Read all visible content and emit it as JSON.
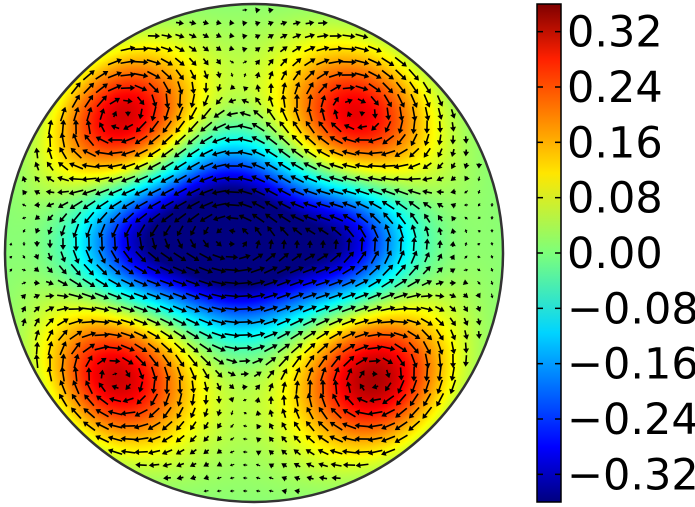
{
  "chart_data": {
    "type": "heatmap",
    "subtype": "vector-field-overlay-on-disk",
    "title": "",
    "xlabel": "",
    "ylabel": "",
    "colormap": "jet",
    "colorbar": {
      "range": [
        -0.36,
        0.36
      ],
      "ticks": [
        0.32,
        0.24,
        0.16,
        0.08,
        0.0,
        -0.08,
        -0.16,
        -0.24,
        -0.32
      ],
      "tick_labels": [
        "0.32",
        "0.24",
        "0.16",
        "0.08",
        "0.00",
        "−0.08",
        "−0.16",
        "−0.24",
        "−0.32"
      ]
    },
    "field_features": [
      {
        "kind": "max",
        "x": -0.55,
        "y": 0.56,
        "value": 0.34
      },
      {
        "kind": "max",
        "x": 0.42,
        "y": 0.56,
        "value": 0.3
      },
      {
        "kind": "max",
        "x": -0.58,
        "y": -0.52,
        "value": 0.33
      },
      {
        "kind": "max",
        "x": 0.5,
        "y": -0.52,
        "value": 0.34
      },
      {
        "kind": "min",
        "x": -0.45,
        "y": 0.05,
        "value": -0.32
      },
      {
        "kind": "min",
        "x": 0.35,
        "y": 0.05,
        "value": -0.34
      },
      {
        "kind": "min",
        "x": -0.05,
        "y": -0.05,
        "value": -0.3
      },
      {
        "kind": "min",
        "x": -0.1,
        "y": 0.22,
        "value": -0.26
      }
    ],
    "vectors": "quiver arrows tangent to contours of the scalar field",
    "grid": false,
    "legend": "none"
  }
}
